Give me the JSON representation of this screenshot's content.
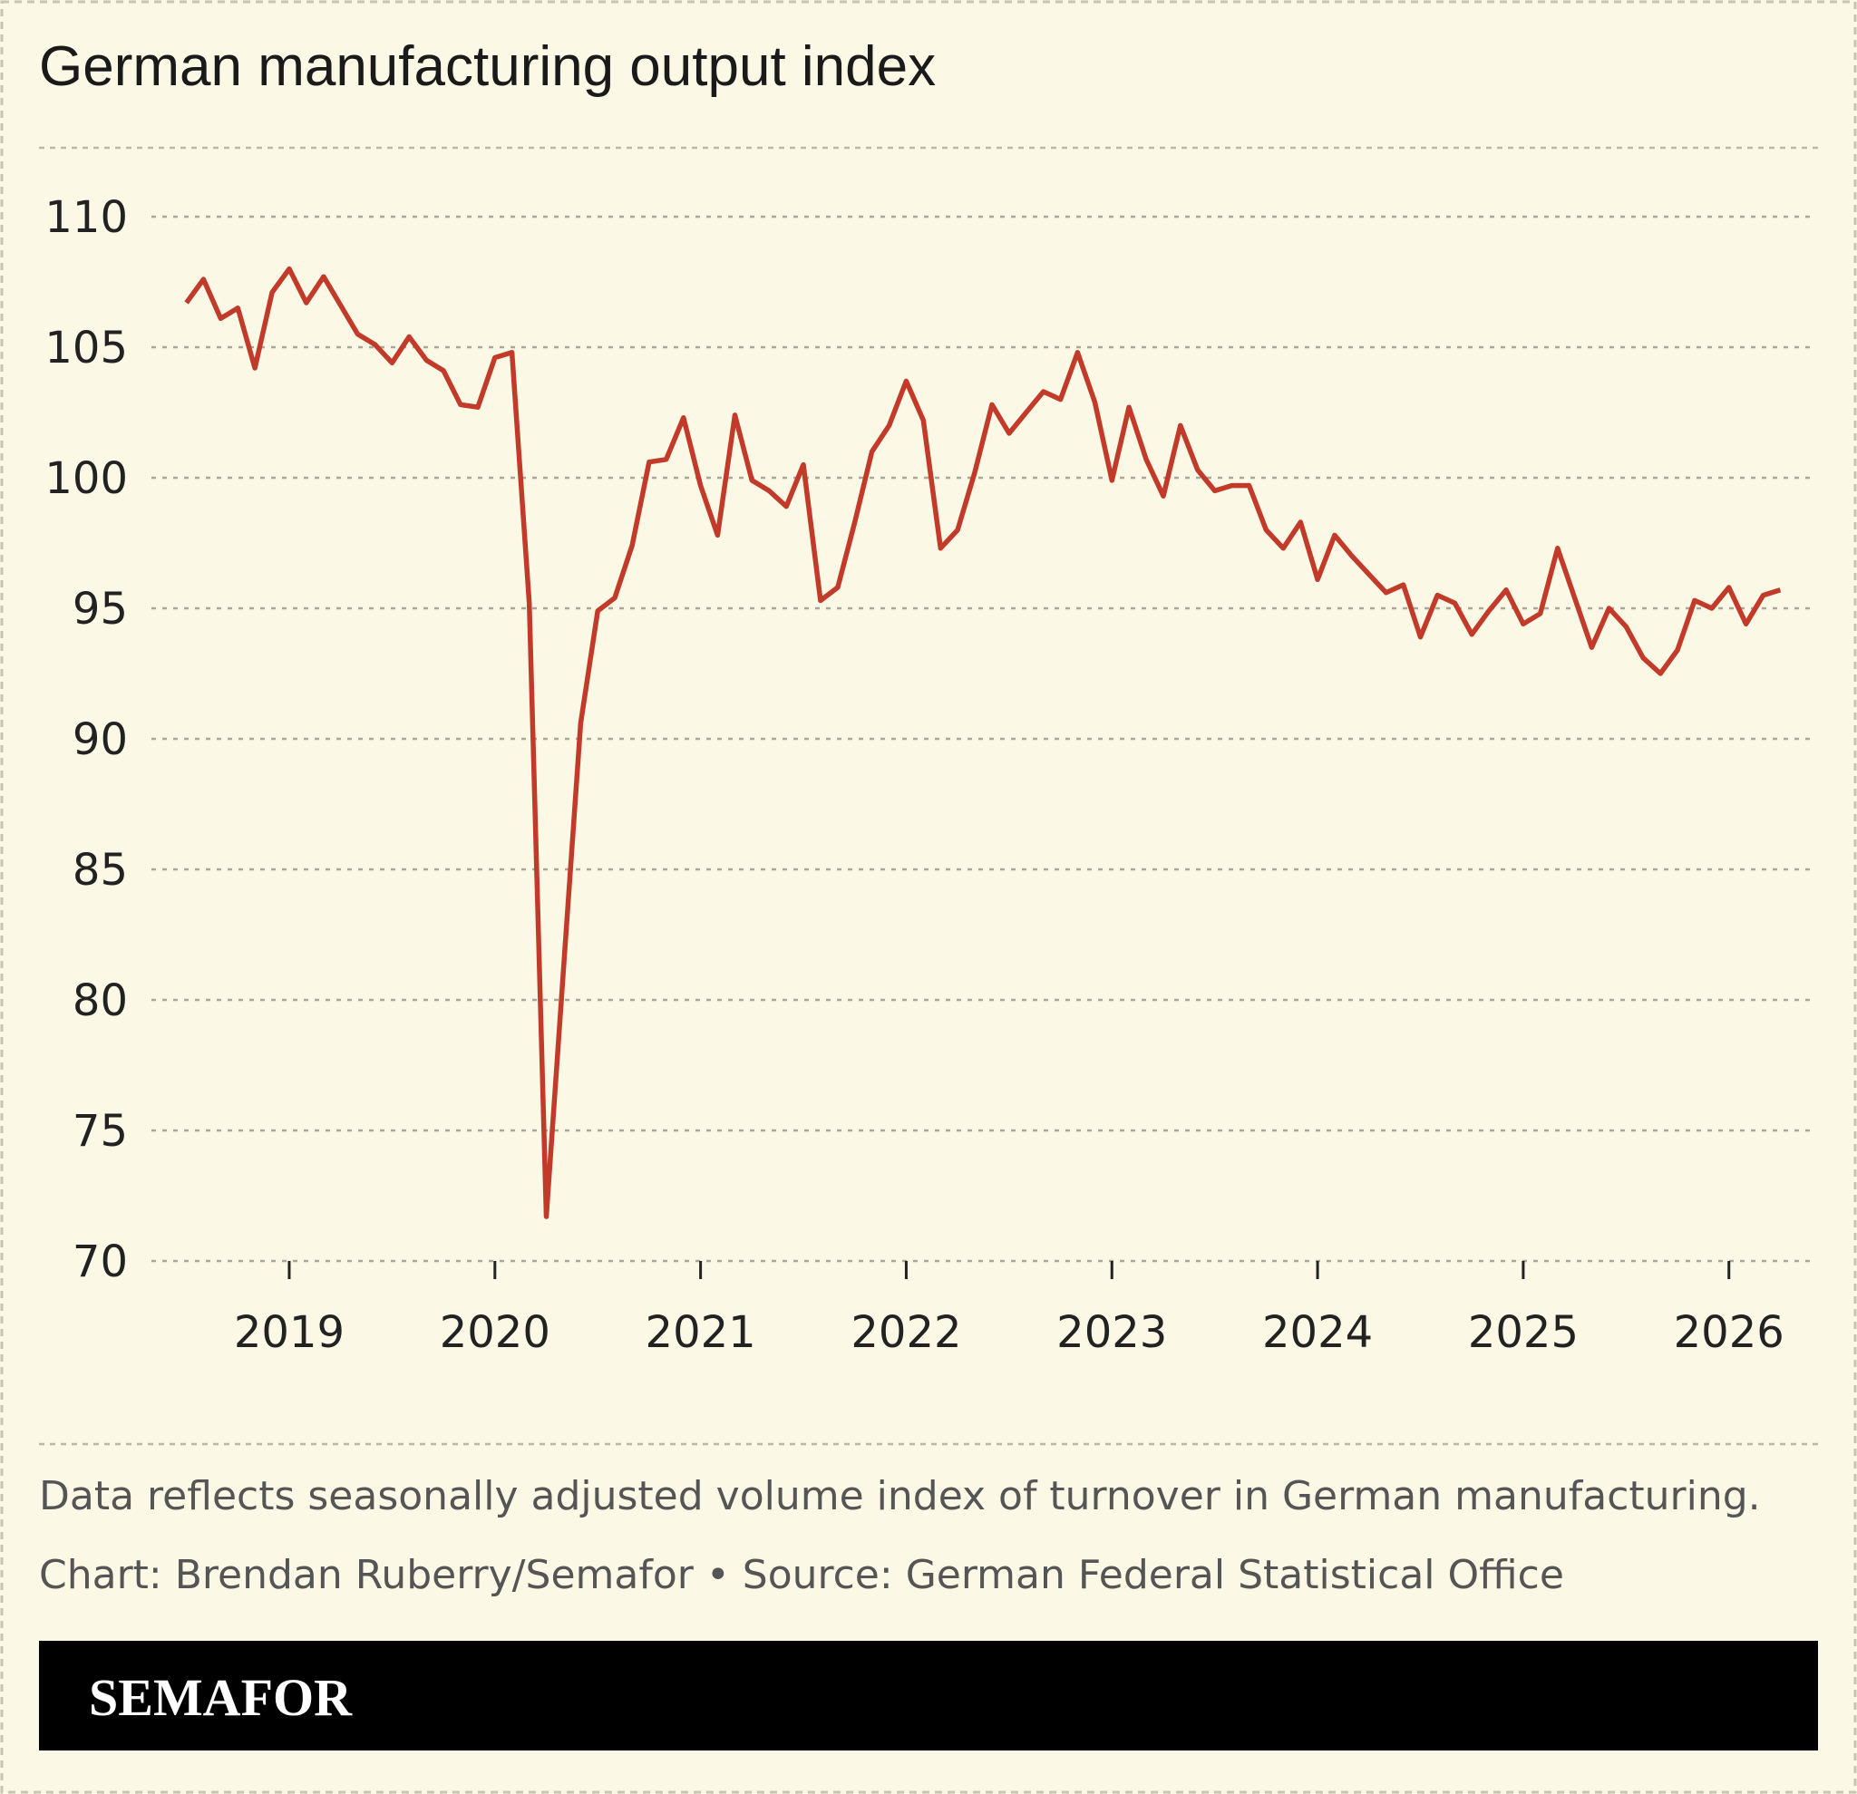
{
  "chart_data": {
    "type": "line",
    "title": "German manufacturing output index",
    "note": "Data reflects seasonally adjusted volume index of turnover in German manufacturing.",
    "source": "Chart: Brendan Ruberry/Semafor • Source: German Federal Statistical Office",
    "brand": "SEMAFOR",
    "x": [
      2018.5,
      2018.583,
      2018.667,
      2018.75,
      2018.833,
      2018.917,
      2019,
      2019.083,
      2019.167,
      2019.25,
      2019.333,
      2019.417,
      2019.5,
      2019.583,
      2019.667,
      2019.75,
      2019.833,
      2019.917,
      2020,
      2020.083,
      2020.167,
      2020.25,
      2020.333,
      2020.417,
      2020.5,
      2020.583,
      2020.667,
      2020.75,
      2020.833,
      2020.917,
      2021,
      2021.083,
      2021.167,
      2021.25,
      2021.333,
      2021.417,
      2021.5,
      2021.583,
      2021.667,
      2021.75,
      2021.833,
      2021.917,
      2022,
      2022.083,
      2022.167,
      2022.25,
      2022.333,
      2022.417,
      2022.5,
      2022.583,
      2022.667,
      2022.75,
      2022.833,
      2022.917,
      2023,
      2023.083,
      2023.167,
      2023.25,
      2023.333,
      2023.417,
      2023.5,
      2023.583,
      2023.667,
      2023.75,
      2023.833,
      2023.917,
      2024,
      2024.083,
      2024.167,
      2024.25,
      2024.333,
      2024.417,
      2024.5,
      2024.583,
      2024.667,
      2024.75,
      2024.833,
      2024.917,
      2025,
      2025.083,
      2025.167,
      2025.25,
      2025.333,
      2025.417,
      2025.5,
      2025.583,
      2025.667,
      2025.75,
      2025.833,
      2025.917,
      2026,
      2026.083,
      2026.167,
      2026.25
    ],
    "series": [
      {
        "name": "Output index",
        "color": "#c23a2a",
        "values": [
          106.7,
          107.6,
          106.1,
          106.5,
          104.2,
          107.1,
          108.0,
          106.7,
          107.7,
          106.6,
          105.5,
          105.1,
          104.4,
          105.4,
          104.5,
          104.1,
          102.8,
          102.7,
          104.6,
          104.8,
          95.2,
          71.7,
          81.1,
          90.6,
          94.9,
          95.4,
          97.4,
          100.6,
          100.7,
          102.3,
          99.7,
          97.8,
          102.4,
          99.9,
          99.5,
          98.9,
          100.5,
          95.3,
          95.8,
          98.3,
          101.0,
          102.0,
          103.7,
          102.2,
          97.3,
          98.0,
          100.2,
          102.8,
          101.7,
          102.5,
          103.3,
          103.0,
          104.8,
          102.9,
          99.9,
          102.7,
          100.7,
          99.3,
          102.0,
          100.3,
          99.5,
          99.7,
          99.7,
          98.0,
          97.3,
          98.3,
          96.1,
          97.8,
          97.0,
          96.3,
          95.6,
          95.9,
          93.9,
          95.5,
          95.2,
          94.0,
          94.9,
          95.7,
          94.4,
          94.8,
          97.3,
          95.4,
          93.5,
          95.0,
          94.3,
          93.1,
          92.5,
          93.4,
          95.3,
          95.0,
          95.8,
          94.4,
          95.5,
          95.7
        ]
      }
    ],
    "xlim": [
      2018.33,
      2026.42
    ],
    "xticks": [
      2019,
      2020,
      2021,
      2022,
      2023,
      2024,
      2025,
      2026
    ],
    "ylim": [
      70,
      110
    ],
    "yticks": [
      70,
      75,
      80,
      85,
      90,
      95,
      100,
      105,
      110
    ],
    "grid": true
  }
}
